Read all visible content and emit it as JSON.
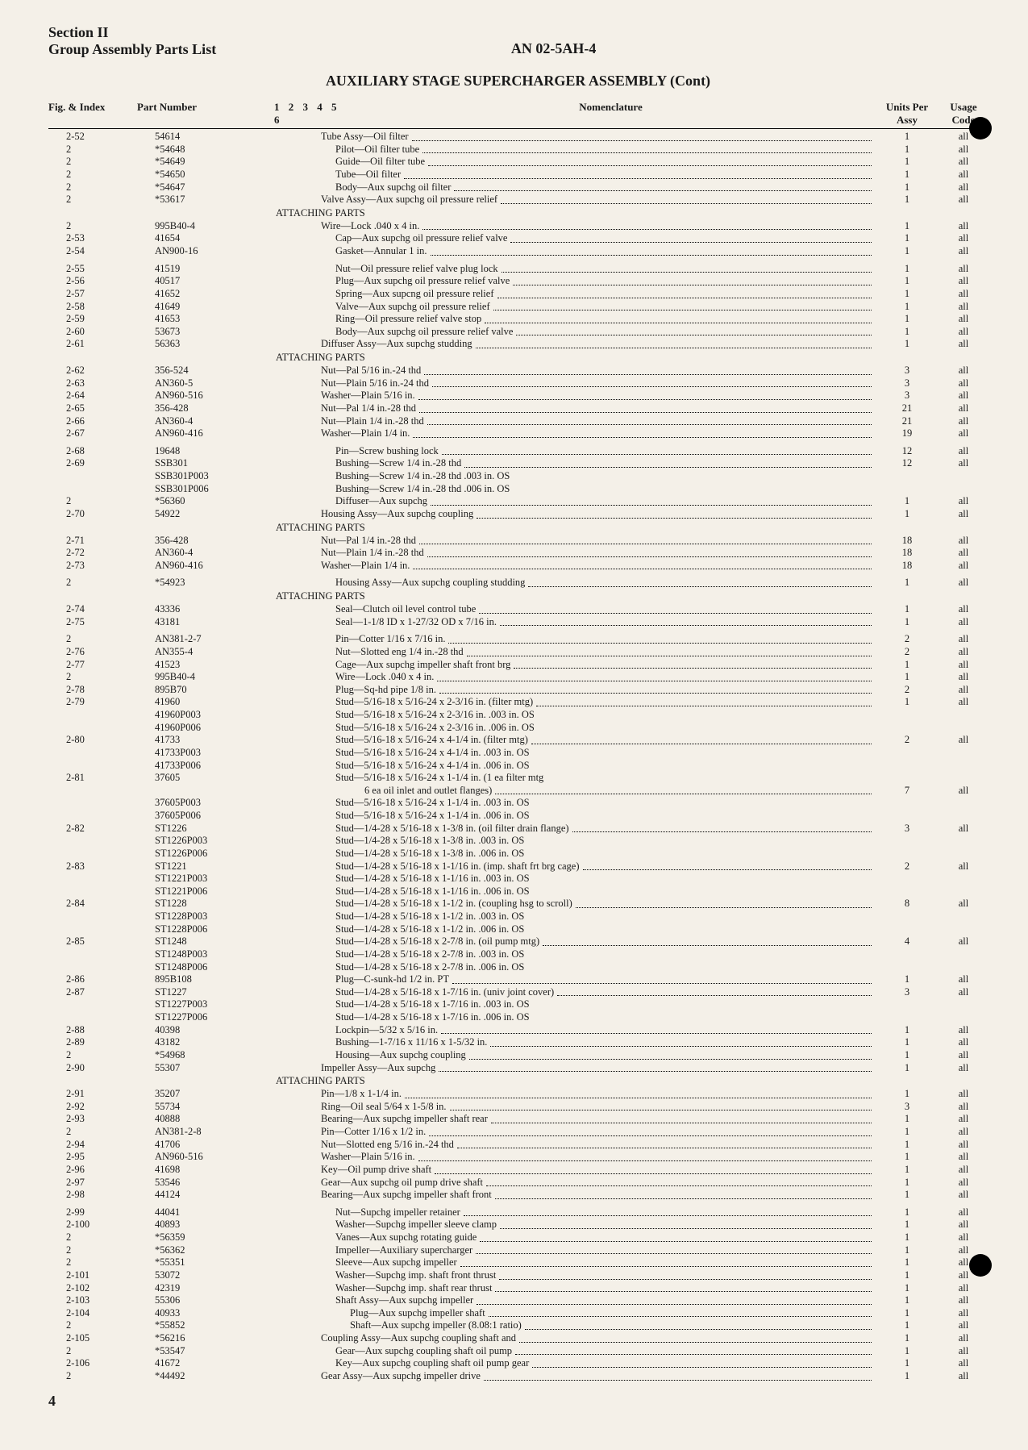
{
  "header": {
    "section": "Section II",
    "group": "Group Assembly Parts List",
    "doc_id": "AN 02-5AH-4",
    "subtitle": "AUXILIARY STAGE SUPERCHARGER ASSEMBLY (Cont)"
  },
  "columns": {
    "fig": "Fig. & Index",
    "part": "Part Number",
    "indent": "1 2 3 4 5 6",
    "nom": "Nomenclature",
    "units": "Units Per Assy",
    "usage": "Usage Code"
  },
  "page_number": "4",
  "rows": [
    {
      "fig": "2-52",
      "part": "54614",
      "lvl": 3,
      "nom": "Tube Assy—Oil filter",
      "units": "1",
      "usage": "all"
    },
    {
      "fig": "2",
      "part": "*54648",
      "lvl": 4,
      "nom": "Pilot—Oil filter tube",
      "units": "1",
      "usage": "all"
    },
    {
      "fig": "2",
      "part": "*54649",
      "lvl": 4,
      "nom": "Guide—Oil filter tube",
      "units": "1",
      "usage": "all"
    },
    {
      "fig": "2",
      "part": "*54650",
      "lvl": 4,
      "nom": "Tube—Oil filter",
      "units": "1",
      "usage": "all"
    },
    {
      "fig": "2",
      "part": "*54647",
      "lvl": 4,
      "nom": "Body—Aux supchg oil filter",
      "units": "1",
      "usage": "all"
    },
    {
      "fig": "2",
      "part": "*53617",
      "lvl": 3,
      "nom": "Valve Assy—Aux supchg oil pressure relief",
      "units": "1",
      "usage": "all"
    },
    {
      "attach": "ATTACHING PARTS"
    },
    {
      "fig": "2",
      "part": "995B40-4",
      "lvl": 3,
      "nom": "Wire—Lock .040 x 4 in.",
      "units": "1",
      "usage": "all"
    },
    {
      "fig": "2-53",
      "part": "41654",
      "lvl": 4,
      "nom": "Cap—Aux supchg oil pressure relief valve",
      "units": "1",
      "usage": "all"
    },
    {
      "fig": "2-54",
      "part": "AN900-16",
      "lvl": 4,
      "nom": "Gasket—Annular 1 in.",
      "units": "1",
      "usage": "all"
    },
    {
      "blank": true
    },
    {
      "fig": "2-55",
      "part": "41519",
      "lvl": 4,
      "nom": "Nut—Oil pressure relief valve plug lock",
      "units": "1",
      "usage": "all"
    },
    {
      "fig": "2-56",
      "part": "40517",
      "lvl": 4,
      "nom": "Plug—Aux supchg oil pressure relief valve",
      "units": "1",
      "usage": "all"
    },
    {
      "fig": "2-57",
      "part": "41652",
      "lvl": 4,
      "nom": "Spring—Aux supcng oil pressure relief",
      "units": "1",
      "usage": "all"
    },
    {
      "fig": "2-58",
      "part": "41649",
      "lvl": 4,
      "nom": "Valve—Aux supchg oil pressure relief",
      "units": "1",
      "usage": "all"
    },
    {
      "fig": "2-59",
      "part": "41653",
      "lvl": 4,
      "nom": "Ring—Oil pressure relief valve stop",
      "units": "1",
      "usage": "all"
    },
    {
      "fig": "2-60",
      "part": "53673",
      "lvl": 4,
      "nom": "Body—Aux supchg oil pressure relief valve",
      "units": "1",
      "usage": "all"
    },
    {
      "fig": "2-61",
      "part": "56363",
      "lvl": 3,
      "nom": "Diffuser Assy—Aux supchg studding",
      "units": "1",
      "usage": "all"
    },
    {
      "attach": "ATTACHING PARTS"
    },
    {
      "fig": "2-62",
      "part": "356-524",
      "lvl": 3,
      "nom": "Nut—Pal 5/16 in.-24 thd",
      "units": "3",
      "usage": "all"
    },
    {
      "fig": "2-63",
      "part": "AN360-5",
      "lvl": 3,
      "nom": "Nut—Plain 5/16 in.-24 thd",
      "units": "3",
      "usage": "all"
    },
    {
      "fig": "2-64",
      "part": "AN960-516",
      "lvl": 3,
      "nom": "Washer—Plain 5/16 in.",
      "units": "3",
      "usage": "all"
    },
    {
      "fig": "2-65",
      "part": "356-428",
      "lvl": 3,
      "nom": "Nut—Pal 1/4 in.-28 thd",
      "units": "21",
      "usage": "all"
    },
    {
      "fig": "2-66",
      "part": "AN360-4",
      "lvl": 3,
      "nom": "Nut—Plain 1/4 in.-28 thd",
      "units": "21",
      "usage": "all"
    },
    {
      "fig": "2-67",
      "part": "AN960-416",
      "lvl": 3,
      "nom": "Washer—Plain 1/4 in.",
      "units": "19",
      "usage": "all"
    },
    {
      "blank": true
    },
    {
      "fig": "2-68",
      "part": "19648",
      "lvl": 4,
      "nom": "Pin—Screw bushing lock",
      "units": "12",
      "usage": "all"
    },
    {
      "fig": "2-69",
      "part": "SSB301",
      "lvl": 4,
      "nom": "Bushing—Screw 1/4 in.-28 thd",
      "units": "12",
      "usage": "all"
    },
    {
      "fig": "",
      "part": "SSB301P003",
      "lvl": 4,
      "nom": "Bushing—Screw 1/4 in.-28 thd .003 in. OS",
      "units": "",
      "usage": ""
    },
    {
      "fig": "",
      "part": "SSB301P006",
      "lvl": 4,
      "nom": "Bushing—Screw 1/4 in.-28 thd .006 in. OS",
      "units": "",
      "usage": ""
    },
    {
      "fig": "2",
      "part": "*56360",
      "lvl": 4,
      "nom": "Diffuser—Aux supchg",
      "units": "1",
      "usage": "all"
    },
    {
      "fig": "2-70",
      "part": "54922",
      "lvl": 3,
      "nom": "Housing Assy—Aux supchg coupling",
      "units": "1",
      "usage": "all"
    },
    {
      "attach": "ATTACHING PARTS"
    },
    {
      "fig": "2-71",
      "part": "356-428",
      "lvl": 3,
      "nom": "Nut—Pal 1/4 in.-28 thd",
      "units": "18",
      "usage": "all"
    },
    {
      "fig": "2-72",
      "part": "AN360-4",
      "lvl": 3,
      "nom": "Nut—Plain 1/4 in.-28 thd",
      "units": "18",
      "usage": "all"
    },
    {
      "fig": "2-73",
      "part": "AN960-416",
      "lvl": 3,
      "nom": "Washer—Plain 1/4 in.",
      "units": "18",
      "usage": "all"
    },
    {
      "blank": true
    },
    {
      "fig": "2",
      "part": "*54923",
      "lvl": 4,
      "nom": "Housing Assy—Aux supchg coupling studding",
      "units": "1",
      "usage": "all"
    },
    {
      "attach": "ATTACHING PARTS"
    },
    {
      "fig": "2-74",
      "part": "43336",
      "lvl": 4,
      "nom": "Seal—Clutch oil level control tube",
      "units": "1",
      "usage": "all"
    },
    {
      "fig": "2-75",
      "part": "43181",
      "lvl": 4,
      "nom": "Seal—1-1/8 ID x 1-27/32 OD x 7/16 in.",
      "units": "1",
      "usage": "all"
    },
    {
      "blank": true
    },
    {
      "fig": "2",
      "part": "AN381-2-7",
      "lvl": 4,
      "nom": "Pin—Cotter 1/16 x 7/16 in.",
      "units": "2",
      "usage": "all"
    },
    {
      "fig": "2-76",
      "part": "AN355-4",
      "lvl": 4,
      "nom": "Nut—Slotted eng 1/4 in.-28 thd",
      "units": "2",
      "usage": "all"
    },
    {
      "fig": "2-77",
      "part": "41523",
      "lvl": 4,
      "nom": "Cage—Aux supchg impeller shaft front brg",
      "units": "1",
      "usage": "all"
    },
    {
      "fig": "2",
      "part": "995B40-4",
      "lvl": 4,
      "nom": "Wire—Lock .040 x 4 in.",
      "units": "1",
      "usage": "all"
    },
    {
      "fig": "2-78",
      "part": "895B70",
      "lvl": 4,
      "nom": "Plug—Sq-hd pipe 1/8 in.",
      "units": "2",
      "usage": "all"
    },
    {
      "fig": "2-79",
      "part": "41960",
      "lvl": 4,
      "nom": "Stud—5/16-18 x 5/16-24 x 2-3/16 in. (filter mtg)",
      "units": "1",
      "usage": "all"
    },
    {
      "fig": "",
      "part": "41960P003",
      "lvl": 4,
      "nom": "Stud—5/16-18 x 5/16-24 x 2-3/16 in. .003 in. OS",
      "units": "",
      "usage": ""
    },
    {
      "fig": "",
      "part": "41960P006",
      "lvl": 4,
      "nom": "Stud—5/16-18 x 5/16-24 x 2-3/16 in. .006 in. OS",
      "units": "",
      "usage": ""
    },
    {
      "fig": "2-80",
      "part": "41733",
      "lvl": 4,
      "nom": "Stud—5/16-18 x 5/16-24 x 4-1/4 in. (filter mtg)",
      "units": "2",
      "usage": "all"
    },
    {
      "fig": "",
      "part": "41733P003",
      "lvl": 4,
      "nom": "Stud—5/16-18 x 5/16-24 x 4-1/4 in. .003 in. OS",
      "units": "",
      "usage": ""
    },
    {
      "fig": "",
      "part": "41733P006",
      "lvl": 4,
      "nom": "Stud—5/16-18 x 5/16-24 x 4-1/4 in. .006 in. OS",
      "units": "",
      "usage": ""
    },
    {
      "fig": "2-81",
      "part": "37605",
      "lvl": 4,
      "nom": "Stud—5/16-18 x 5/16-24 x 1-1/4 in. (1 ea filter mtg",
      "units": "",
      "usage": ""
    },
    {
      "fig": "",
      "part": "",
      "lvl": 6,
      "nom": "6 ea oil inlet and outlet flanges)",
      "units": "7",
      "usage": "all"
    },
    {
      "fig": "",
      "part": "37605P003",
      "lvl": 4,
      "nom": "Stud—5/16-18 x 5/16-24 x 1-1/4 in. .003 in. OS",
      "units": "",
      "usage": ""
    },
    {
      "fig": "",
      "part": "37605P006",
      "lvl": 4,
      "nom": "Stud—5/16-18 x 5/16-24 x 1-1/4 in. .006 in. OS",
      "units": "",
      "usage": ""
    },
    {
      "fig": "2-82",
      "part": "ST1226",
      "lvl": 4,
      "nom": "Stud—1/4-28 x 5/16-18 x 1-3/8 in. (oil filter drain flange)",
      "units": "3",
      "usage": "all"
    },
    {
      "fig": "",
      "part": "ST1226P003",
      "lvl": 4,
      "nom": "Stud—1/4-28 x 5/16-18 x 1-3/8 in. .003 in. OS",
      "units": "",
      "usage": ""
    },
    {
      "fig": "",
      "part": "ST1226P006",
      "lvl": 4,
      "nom": "Stud—1/4-28 x 5/16-18 x 1-3/8 in. .006 in. OS",
      "units": "",
      "usage": ""
    },
    {
      "fig": "2-83",
      "part": "ST1221",
      "lvl": 4,
      "nom": "Stud—1/4-28 x 5/16-18 x 1-1/16 in. (imp. shaft frt brg cage)",
      "units": "2",
      "usage": "all"
    },
    {
      "fig": "",
      "part": "ST1221P003",
      "lvl": 4,
      "nom": "Stud—1/4-28 x 5/16-18 x 1-1/16 in. .003 in. OS",
      "units": "",
      "usage": ""
    },
    {
      "fig": "",
      "part": "ST1221P006",
      "lvl": 4,
      "nom": "Stud—1/4-28 x 5/16-18 x 1-1/16 in. .006 in. OS",
      "units": "",
      "usage": ""
    },
    {
      "fig": "2-84",
      "part": "ST1228",
      "lvl": 4,
      "nom": "Stud—1/4-28 x 5/16-18 x 1-1/2 in. (coupling hsg to scroll)",
      "units": "8",
      "usage": "all"
    },
    {
      "fig": "",
      "part": "ST1228P003",
      "lvl": 4,
      "nom": "Stud—1/4-28 x 5/16-18 x 1-1/2 in. .003 in. OS",
      "units": "",
      "usage": ""
    },
    {
      "fig": "",
      "part": "ST1228P006",
      "lvl": 4,
      "nom": "Stud—1/4-28 x 5/16-18 x 1-1/2 in. .006 in. OS",
      "units": "",
      "usage": ""
    },
    {
      "fig": "2-85",
      "part": "ST1248",
      "lvl": 4,
      "nom": "Stud—1/4-28 x 5/16-18 x 2-7/8 in. (oil pump mtg)",
      "units": "4",
      "usage": "all"
    },
    {
      "fig": "",
      "part": "ST1248P003",
      "lvl": 4,
      "nom": "Stud—1/4-28 x 5/16-18 x 2-7/8 in. .003 in. OS",
      "units": "",
      "usage": ""
    },
    {
      "fig": "",
      "part": "ST1248P006",
      "lvl": 4,
      "nom": "Stud—1/4-28 x 5/16-18 x 2-7/8 in. .006 in. OS",
      "units": "",
      "usage": ""
    },
    {
      "fig": "2-86",
      "part": "895B108",
      "lvl": 4,
      "nom": "Plug—C-sunk-hd 1/2 in. PT",
      "units": "1",
      "usage": "all"
    },
    {
      "fig": "2-87",
      "part": "ST1227",
      "lvl": 4,
      "nom": "Stud—1/4-28 x 5/16-18 x 1-7/16 in. (univ joint cover)",
      "units": "3",
      "usage": "all"
    },
    {
      "fig": "",
      "part": "ST1227P003",
      "lvl": 4,
      "nom": "Stud—1/4-28 x 5/16-18 x 1-7/16 in. .003 in. OS",
      "units": "",
      "usage": ""
    },
    {
      "fig": "",
      "part": "ST1227P006",
      "lvl": 4,
      "nom": "Stud—1/4-28 x 5/16-18 x 1-7/16 in. .006 in. OS",
      "units": "",
      "usage": ""
    },
    {
      "fig": "2-88",
      "part": "40398",
      "lvl": 4,
      "nom": "Lockpin—5/32 x 5/16 in.",
      "units": "1",
      "usage": "all"
    },
    {
      "fig": "2-89",
      "part": "43182",
      "lvl": 4,
      "nom": "Bushing—1-7/16 x 11/16 x 1-5/32 in.",
      "units": "1",
      "usage": "all"
    },
    {
      "fig": "2",
      "part": "*54968",
      "lvl": 4,
      "nom": "Housing—Aux supchg coupling",
      "units": "1",
      "usage": "all"
    },
    {
      "fig": "2-90",
      "part": "55307",
      "lvl": 3,
      "nom": "Impeller Assy—Aux supchg",
      "units": "1",
      "usage": "all"
    },
    {
      "attach": "ATTACHING PARTS"
    },
    {
      "fig": "2-91",
      "part": "35207",
      "lvl": 3,
      "nom": "Pin—1/8 x 1-1/4 in.",
      "units": "1",
      "usage": "all"
    },
    {
      "fig": "2-92",
      "part": "55734",
      "lvl": 3,
      "nom": "Ring—Oil seal 5/64 x 1-5/8 in.",
      "units": "3",
      "usage": "all"
    },
    {
      "fig": "2-93",
      "part": "40888",
      "lvl": 3,
      "nom": "Bearing—Aux supchg impeller shaft rear",
      "units": "1",
      "usage": "all"
    },
    {
      "fig": "2",
      "part": "AN381-2-8",
      "lvl": 3,
      "nom": "Pin—Cotter 1/16 x 1/2 in.",
      "units": "1",
      "usage": "all"
    },
    {
      "fig": "2-94",
      "part": "41706",
      "lvl": 3,
      "nom": "Nut—Slotted eng 5/16 in.-24 thd",
      "units": "1",
      "usage": "all"
    },
    {
      "fig": "2-95",
      "part": "AN960-516",
      "lvl": 3,
      "nom": "Washer—Plain 5/16 in.",
      "units": "1",
      "usage": "all"
    },
    {
      "fig": "2-96",
      "part": "41698",
      "lvl": 3,
      "nom": "Key—Oil pump drive shaft",
      "units": "1",
      "usage": "all"
    },
    {
      "fig": "2-97",
      "part": "53546",
      "lvl": 3,
      "nom": "Gear—Aux supchg oil pump drive shaft",
      "units": "1",
      "usage": "all"
    },
    {
      "fig": "2-98",
      "part": "44124",
      "lvl": 3,
      "nom": "Bearing—Aux supchg impeller shaft front",
      "units": "1",
      "usage": "all"
    },
    {
      "blank": true
    },
    {
      "fig": "2-99",
      "part": "44041",
      "lvl": 4,
      "nom": "Nut—Supchg impeller retainer",
      "units": "1",
      "usage": "all"
    },
    {
      "fig": "2-100",
      "part": "40893",
      "lvl": 4,
      "nom": "Washer—Supchg impeller sleeve clamp",
      "units": "1",
      "usage": "all"
    },
    {
      "fig": "2",
      "part": "*56359",
      "lvl": 4,
      "nom": "Vanes—Aux supchg rotating guide",
      "units": "1",
      "usage": "all"
    },
    {
      "fig": "2",
      "part": "*56362",
      "lvl": 4,
      "nom": "Impeller—Auxiliary supercharger",
      "units": "1",
      "usage": "all"
    },
    {
      "fig": "2",
      "part": "*55351",
      "lvl": 4,
      "nom": "Sleeve—Aux supchg impeller",
      "units": "1",
      "usage": "all"
    },
    {
      "fig": "2-101",
      "part": "53072",
      "lvl": 4,
      "nom": "Washer—Supchg imp. shaft front thrust",
      "units": "1",
      "usage": "all"
    },
    {
      "fig": "2-102",
      "part": "42319",
      "lvl": 4,
      "nom": "Washer—Supchg imp. shaft rear thrust",
      "units": "1",
      "usage": "all"
    },
    {
      "fig": "2-103",
      "part": "55306",
      "lvl": 4,
      "nom": "Shaft Assy—Aux supchg impeller",
      "units": "1",
      "usage": "all"
    },
    {
      "fig": "2-104",
      "part": "40933",
      "lvl": 5,
      "nom": "Plug—Aux supchg impeller shaft",
      "units": "1",
      "usage": "all"
    },
    {
      "fig": "2",
      "part": "*55852",
      "lvl": 5,
      "nom": "Shaft—Aux supchg impeller (8.08:1 ratio)",
      "units": "1",
      "usage": "all"
    },
    {
      "fig": "2-105",
      "part": "*56216",
      "lvl": 3,
      "nom": "Coupling Assy—Aux supchg coupling shaft and",
      "units": "1",
      "usage": "all"
    },
    {
      "fig": "2",
      "part": "*53547",
      "lvl": 4,
      "nom": "Gear—Aux supchg coupling shaft oil pump",
      "units": "1",
      "usage": "all"
    },
    {
      "fig": "2-106",
      "part": "41672",
      "lvl": 4,
      "nom": "Key—Aux supchg coupling shaft oil pump gear",
      "units": "1",
      "usage": "all"
    },
    {
      "fig": "2",
      "part": "*44492",
      "lvl": 3,
      "nom": "Gear Assy—Aux supchg impeller drive",
      "units": "1",
      "usage": "all"
    }
  ]
}
